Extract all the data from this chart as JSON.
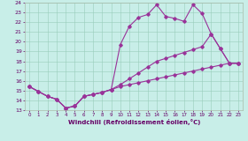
{
  "bg_color": "#c8eee8",
  "line_color": "#993399",
  "xlabel": "Windchill (Refroidissement éolien,°C)",
  "xlim_min": -0.5,
  "xlim_max": 23.5,
  "ylim_min": 13,
  "ylim_max": 24,
  "xticks": [
    0,
    1,
    2,
    3,
    4,
    5,
    6,
    7,
    8,
    9,
    10,
    11,
    12,
    13,
    14,
    15,
    16,
    17,
    18,
    19,
    20,
    21,
    22,
    23
  ],
  "yticks": [
    13,
    14,
    15,
    16,
    17,
    18,
    19,
    20,
    21,
    22,
    23,
    24
  ],
  "line_bot_x": [
    0,
    1,
    2,
    3,
    4,
    5,
    6,
    7,
    8,
    9,
    10,
    11,
    12,
    13,
    14,
    15,
    16,
    17,
    18,
    19,
    20,
    21,
    22,
    23
  ],
  "line_bot_y": [
    15.4,
    14.9,
    14.4,
    14.1,
    13.2,
    13.4,
    14.4,
    14.6,
    14.8,
    15.1,
    15.4,
    15.6,
    15.8,
    16.0,
    16.2,
    16.4,
    16.6,
    16.8,
    17.0,
    17.2,
    17.4,
    17.6,
    17.8,
    17.8
  ],
  "line_mid_x": [
    0,
    1,
    2,
    3,
    4,
    5,
    6,
    7,
    8,
    9,
    10,
    11,
    12,
    13,
    14,
    15,
    16,
    17,
    18,
    19,
    20,
    21,
    22,
    23
  ],
  "line_mid_y": [
    15.4,
    14.9,
    14.4,
    14.1,
    13.2,
    13.4,
    14.4,
    14.6,
    14.8,
    15.1,
    15.6,
    16.2,
    16.8,
    17.4,
    18.0,
    18.3,
    18.6,
    18.9,
    19.2,
    19.5,
    20.8,
    19.3,
    17.8,
    17.8
  ],
  "line_top_x": [
    0,
    1,
    2,
    3,
    4,
    5,
    6,
    7,
    8,
    9,
    10,
    11,
    12,
    13,
    14,
    15,
    16,
    17,
    18,
    19,
    20,
    21,
    22,
    23
  ],
  "line_top_y": [
    15.4,
    14.9,
    14.4,
    14.1,
    13.2,
    13.4,
    14.4,
    14.6,
    14.8,
    15.1,
    19.7,
    21.6,
    22.5,
    22.8,
    23.8,
    22.6,
    22.4,
    22.1,
    23.8,
    22.9,
    20.8,
    19.3,
    17.8,
    17.8
  ]
}
